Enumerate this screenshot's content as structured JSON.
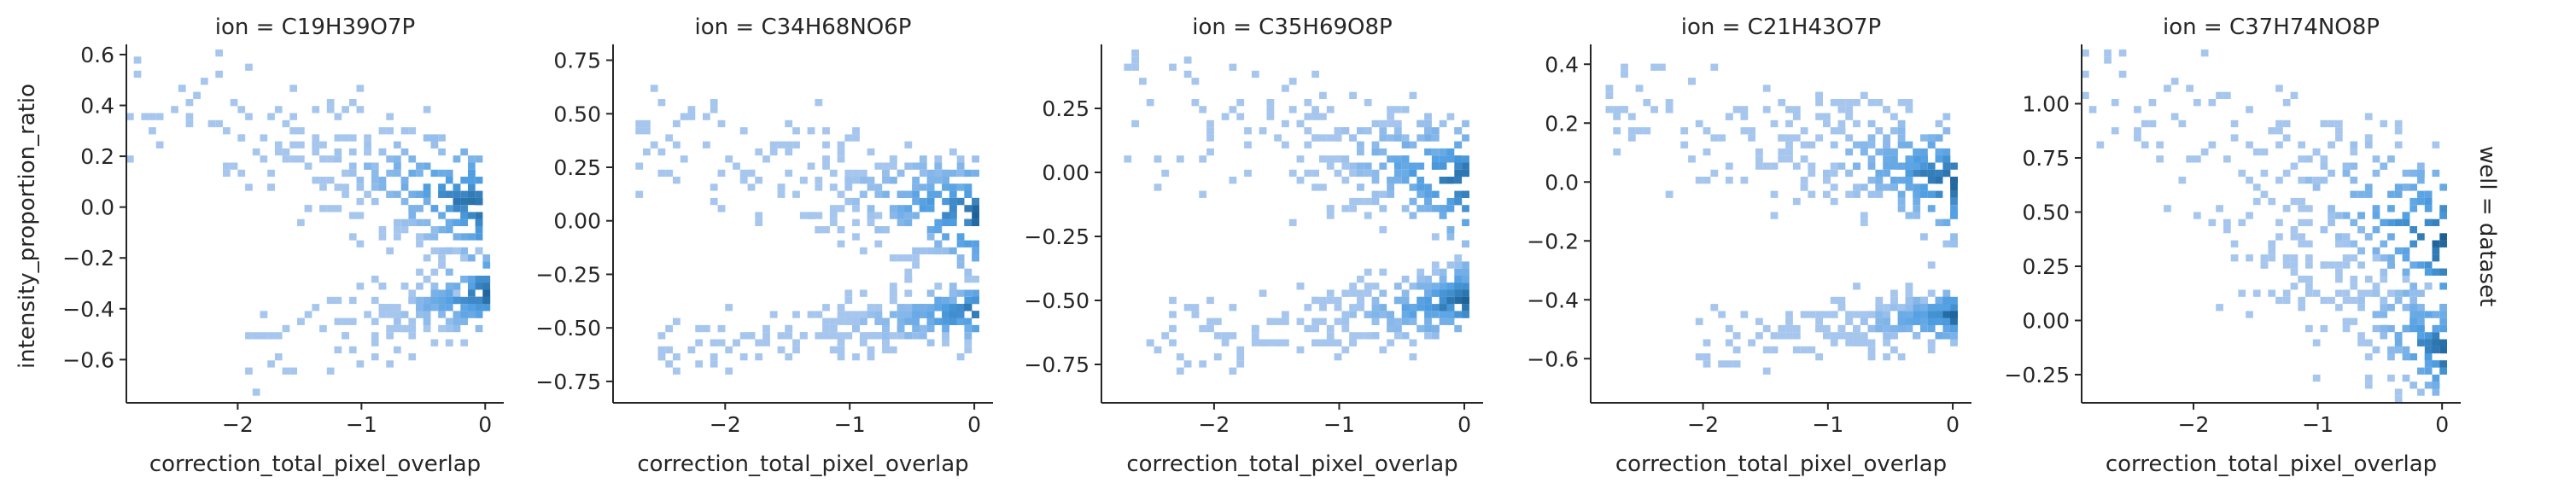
{
  "chart_data": [
    {
      "type": "heatmap",
      "title": "ion = C19H39O7P",
      "xlabel": "correction_total_pixel_overlap",
      "ylabel": "intensity_proportion_ratio",
      "xlim": [
        -2.9,
        0.15
      ],
      "ylim": [
        -0.77,
        0.62
      ],
      "xticks": [
        -2,
        -1,
        0
      ],
      "xtick_labels": [
        "−2",
        "−1",
        "0"
      ],
      "yticks": [
        -0.6,
        -0.4,
        -0.2,
        0.0,
        0.2,
        0.4,
        0.6
      ],
      "ytick_labels": [
        "−0.6",
        "−0.4",
        "−0.2",
        "0.0",
        "0.2",
        "0.4",
        "0.6"
      ],
      "bands": [
        {
          "x0": -2.85,
          "x1": -0.05,
          "y0": 0.0,
          "y1": 0.42,
          "slope": -0.14,
          "sigma": 0.1
        },
        {
          "x0": -1.9,
          "x1": -0.02,
          "y0": -0.33,
          "y1": -0.55,
          "slope": -0.07,
          "sigma": 0.07
        }
      ]
    },
    {
      "type": "heatmap",
      "title": "ion = C34H68NO6P",
      "xlabel": "correction_total_pixel_overlap",
      "ylabel": "",
      "xlim": [
        -2.9,
        0.15
      ],
      "ylim": [
        -0.85,
        0.8
      ],
      "xticks": [
        -2,
        -1,
        0
      ],
      "xtick_labels": [
        "−2",
        "−1",
        "0"
      ],
      "yticks": [
        -0.75,
        -0.5,
        -0.25,
        0.0,
        0.25,
        0.5,
        0.75
      ],
      "ytick_labels": [
        "−0.75",
        "−0.50",
        "−0.25",
        "0.00",
        "0.25",
        "0.50",
        "0.75"
      ],
      "bands": [
        {
          "x0": -2.7,
          "x1": -0.02,
          "y0": 0.02,
          "y1": 0.35,
          "slope": 0.05,
          "sigma": 0.15
        },
        {
          "x0": -2.5,
          "x1": -0.02,
          "y0": -0.42,
          "y1": -0.6,
          "slope": 0.0,
          "sigma": 0.07
        }
      ]
    },
    {
      "type": "heatmap",
      "title": "ion = C35H69O8P",
      "xlabel": "correction_total_pixel_overlap",
      "ylabel": "",
      "xlim": [
        -2.9,
        0.15
      ],
      "ylim": [
        -0.9,
        0.48
      ],
      "xticks": [
        -2,
        -1,
        0
      ],
      "xtick_labels": [
        "−2",
        "−1",
        "0"
      ],
      "yticks": [
        -0.75,
        -0.5,
        -0.25,
        0.0,
        0.25
      ],
      "ytick_labels": [
        "−0.75",
        "−0.50",
        "−0.25",
        "0.00",
        "0.25"
      ],
      "bands": [
        {
          "x0": -2.7,
          "x1": -0.02,
          "y0": -0.05,
          "y1": 0.3,
          "slope": 0.05,
          "sigma": 0.12
        },
        {
          "x0": -2.5,
          "x1": -0.02,
          "y0": -0.5,
          "y1": -0.65,
          "slope": 0.0,
          "sigma": 0.1
        }
      ]
    },
    {
      "type": "heatmap",
      "title": "ion = C21H43O7P",
      "xlabel": "correction_total_pixel_overlap",
      "ylabel": "",
      "xlim": [
        -2.9,
        0.15
      ],
      "ylim": [
        -0.75,
        0.45
      ],
      "xticks": [
        -2,
        -1,
        0
      ],
      "xtick_labels": [
        "−2",
        "−1",
        "0"
      ],
      "yticks": [
        -0.6,
        -0.4,
        -0.2,
        0.0,
        0.2,
        0.4
      ],
      "ytick_labels": [
        "−0.6",
        "−0.4",
        "−0.2",
        "0.0",
        "0.2",
        "0.4"
      ],
      "bands": [
        {
          "x0": -2.75,
          "x1": -0.02,
          "y0": 0.0,
          "y1": 0.25,
          "slope": 0.05,
          "sigma": 0.12
        },
        {
          "x0": -2.0,
          "x1": -0.02,
          "y0": -0.45,
          "y1": -0.55,
          "slope": 0.0,
          "sigma": 0.06
        }
      ]
    },
    {
      "type": "heatmap",
      "title": "ion = C37H74NO8P",
      "xlabel": "correction_total_pixel_overlap",
      "ylabel": "",
      "row_label": "well = dataset",
      "xlim": [
        -2.9,
        0.15
      ],
      "ylim": [
        -0.38,
        1.25
      ],
      "xticks": [
        -2,
        -1,
        0
      ],
      "xtick_labels": [
        "−2",
        "−1",
        "0"
      ],
      "yticks": [
        -0.25,
        0.0,
        0.25,
        0.5,
        0.75,
        1.0
      ],
      "ytick_labels": [
        "−0.25",
        "0.00",
        "0.25",
        "0.50",
        "0.75",
        "1.00"
      ],
      "bands": [
        {
          "x0": -2.85,
          "x1": -0.02,
          "y0": 0.35,
          "y1": 1.1,
          "slope": -0.3,
          "sigma": 0.12
        },
        {
          "x0": -1.8,
          "x1": -0.02,
          "y0": -0.15,
          "y1": 0.3,
          "slope": -0.25,
          "sigma": 0.1
        }
      ]
    }
  ],
  "colors": {
    "light": "#a6c6ee",
    "mid": "#4f9ee2",
    "dark": "#2369a0",
    "axis": "#262626"
  }
}
